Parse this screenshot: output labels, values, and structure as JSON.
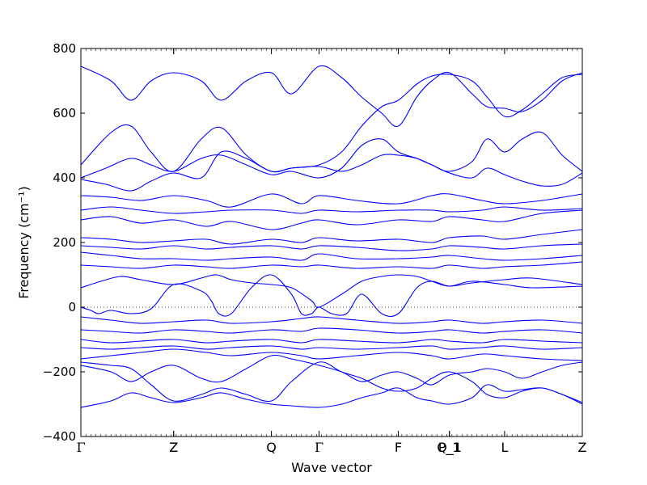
{
  "chart_data": {
    "type": "line",
    "title": "",
    "xlabel": "Wave vector",
    "ylabel": "Frequency (cm⁻¹)",
    "ylim": [
      -400,
      800
    ],
    "yticks": [
      -400,
      -200,
      0,
      200,
      400,
      600,
      800
    ],
    "ytick_labels": [
      "−400",
      "−200",
      "0",
      "200",
      "400",
      "600",
      "800"
    ],
    "xlim": [
      0,
      100
    ],
    "kpoints": [
      {
        "label": "Γ",
        "x": 0
      },
      {
        "label": "Z",
        "x": 18.5
      },
      {
        "label": "Z",
        "x": 18.5
      },
      {
        "label": "Q",
        "x": 38.0
      },
      {
        "label": "Γ",
        "x": 47.5
      },
      {
        "label": "F",
        "x": 63.3
      },
      {
        "label": "P_1",
        "x": 73.5
      },
      {
        "label": "Q_1",
        "x": 73.5
      },
      {
        "label": "L",
        "x": 84.5
      },
      {
        "label": "Z",
        "x": 100
      }
    ],
    "zero_line": true,
    "line_color": "#0000ff",
    "series": [
      {
        "x": [
          0,
          6,
          10,
          14,
          18.5,
          24,
          28,
          33,
          38,
          42,
          47.5,
          52,
          56,
          60,
          63.3,
          67,
          70,
          73.5,
          78,
          81,
          84.5,
          88,
          92,
          96,
          100
        ],
        "y": [
          745,
          700,
          640,
          700,
          725,
          700,
          640,
          700,
          725,
          660,
          745,
          710,
          650,
          600,
          560,
          650,
          700,
          725,
          660,
          620,
          615,
          605,
          640,
          700,
          725
        ]
      },
      {
        "x": [
          0,
          6,
          10,
          14,
          18.5,
          24,
          28,
          33,
          38,
          42,
          47.5,
          52,
          56,
          60,
          63.3,
          67,
          70,
          73.5,
          78,
          81,
          84.5,
          88,
          92,
          96,
          100
        ],
        "y": [
          440,
          540,
          560,
          480,
          420,
          520,
          555,
          470,
          420,
          430,
          440,
          480,
          560,
          620,
          640,
          690,
          715,
          720,
          700,
          650,
          590,
          610,
          660,
          710,
          720
        ]
      },
      {
        "x": [
          0,
          5,
          10,
          14,
          18.5,
          24,
          28,
          33,
          38,
          42,
          47.5,
          52,
          56,
          60,
          63.3,
          67,
          70,
          73.5,
          78,
          81,
          84.5,
          88,
          92,
          96,
          100
        ],
        "y": [
          400,
          430,
          460,
          440,
          420,
          460,
          470,
          440,
          410,
          420,
          400,
          430,
          500,
          520,
          480,
          460,
          440,
          420,
          450,
          520,
          480,
          520,
          540,
          470,
          420
        ]
      },
      {
        "x": [
          0,
          5,
          10,
          14,
          18.5,
          24,
          28,
          33,
          38,
          42,
          47.5,
          52,
          56,
          60,
          63.3,
          67,
          70,
          73.5,
          78,
          81,
          84.5,
          88,
          92,
          96,
          100
        ],
        "y": [
          395,
          380,
          360,
          390,
          415,
          400,
          480,
          460,
          420,
          430,
          435,
          420,
          440,
          470,
          470,
          460,
          440,
          415,
          400,
          430,
          410,
          390,
          375,
          380,
          415
        ]
      },
      {
        "x": [
          0,
          6,
          12,
          18.5,
          25,
          30,
          38,
          44,
          47.5,
          55,
          63.3,
          70,
          73.5,
          80,
          84.5,
          92,
          100
        ],
        "y": [
          345,
          340,
          330,
          345,
          330,
          310,
          350,
          320,
          345,
          330,
          320,
          345,
          350,
          330,
          320,
          330,
          350
        ]
      },
      {
        "x": [
          0,
          6,
          12,
          18.5,
          25,
          30,
          38,
          44,
          47.5,
          55,
          63.3,
          70,
          73.5,
          80,
          84.5,
          92,
          100
        ],
        "y": [
          300,
          310,
          300,
          290,
          295,
          300,
          300,
          290,
          300,
          295,
          300,
          300,
          295,
          300,
          310,
          300,
          305
        ]
      },
      {
        "x": [
          0,
          6,
          12,
          18.5,
          25,
          30,
          38,
          44,
          47.5,
          55,
          63.3,
          70,
          73.5,
          80,
          84.5,
          92,
          100
        ],
        "y": [
          270,
          280,
          260,
          270,
          250,
          265,
          240,
          260,
          270,
          255,
          270,
          265,
          280,
          270,
          265,
          290,
          300
        ]
      },
      {
        "x": [
          0,
          6,
          12,
          18.5,
          25,
          30,
          38,
          44,
          47.5,
          55,
          63.3,
          70,
          73.5,
          80,
          84.5,
          92,
          100
        ],
        "y": [
          215,
          210,
          200,
          205,
          210,
          195,
          210,
          200,
          215,
          205,
          210,
          200,
          215,
          220,
          210,
          225,
          240
        ]
      },
      {
        "x": [
          0,
          6,
          12,
          18.5,
          25,
          30,
          38,
          44,
          47.5,
          55,
          63.3,
          70,
          73.5,
          80,
          84.5,
          92,
          100
        ],
        "y": [
          190,
          185,
          180,
          190,
          180,
          185,
          190,
          180,
          190,
          185,
          175,
          180,
          190,
          185,
          180,
          190,
          195
        ]
      },
      {
        "x": [
          0,
          6,
          12,
          18.5,
          25,
          30,
          38,
          44,
          47.5,
          55,
          63.3,
          70,
          73.5,
          80,
          84.5,
          92,
          100
        ],
        "y": [
          170,
          160,
          150,
          150,
          145,
          150,
          155,
          145,
          165,
          150,
          150,
          155,
          160,
          150,
          145,
          150,
          160
        ]
      },
      {
        "x": [
          0,
          6,
          12,
          18.5,
          25,
          30,
          38,
          44,
          47.5,
          55,
          63.3,
          70,
          73.5,
          80,
          84.5,
          92,
          100
        ],
        "y": [
          130,
          125,
          120,
          130,
          125,
          120,
          130,
          125,
          130,
          120,
          125,
          120,
          130,
          120,
          125,
          130,
          140
        ]
      },
      {
        "x": [
          0,
          4,
          8,
          12,
          18.5,
          24,
          27,
          30,
          34,
          38,
          42,
          46,
          47.5,
          52,
          56,
          60,
          63.3,
          67,
          70,
          73.5,
          78,
          84.5,
          90,
          100
        ],
        "y": [
          60,
          80,
          95,
          85,
          70,
          90,
          100,
          85,
          75,
          70,
          60,
          20,
          0,
          40,
          80,
          95,
          100,
          95,
          80,
          65,
          80,
          70,
          60,
          65
        ]
      },
      {
        "x": [
          0,
          2,
          3.5,
          6,
          10,
          14,
          18.5,
          24,
          26,
          27.5,
          30,
          34,
          38,
          42,
          44,
          46,
          47.5,
          50,
          53,
          56,
          60,
          63.3,
          67,
          70,
          73.5,
          78,
          84.5,
          90,
          100
        ],
        "y": [
          0,
          -10,
          -20,
          -10,
          -20,
          -5,
          70,
          50,
          20,
          -20,
          -20,
          60,
          100,
          40,
          -20,
          -20,
          0,
          -20,
          -20,
          40,
          -20,
          -20,
          60,
          80,
          65,
          75,
          85,
          90,
          70
        ]
      },
      {
        "x": [
          0,
          6,
          12,
          18.5,
          25,
          30,
          38,
          44,
          47.5,
          55,
          63.3,
          70,
          73.5,
          80,
          84.5,
          92,
          100
        ],
        "y": [
          -30,
          -40,
          -50,
          -45,
          -40,
          -50,
          -45,
          -35,
          -30,
          -40,
          -50,
          -45,
          -40,
          -50,
          -45,
          -40,
          -50
        ]
      },
      {
        "x": [
          0,
          6,
          12,
          18.5,
          25,
          30,
          38,
          44,
          47.5,
          55,
          63.3,
          70,
          73.5,
          80,
          84.5,
          92,
          100
        ],
        "y": [
          -70,
          -75,
          -80,
          -70,
          -75,
          -80,
          -70,
          -75,
          -65,
          -70,
          -80,
          -75,
          -70,
          -80,
          -75,
          -70,
          -80
        ]
      },
      {
        "x": [
          0,
          6,
          12,
          18.5,
          25,
          30,
          38,
          44,
          47.5,
          55,
          63.3,
          70,
          73.5,
          80,
          84.5,
          92,
          100
        ],
        "y": [
          -100,
          -110,
          -105,
          -100,
          -110,
          -105,
          -100,
          -110,
          -100,
          -105,
          -110,
          -100,
          -105,
          -110,
          -100,
          -105,
          -110
        ]
      },
      {
        "x": [
          0,
          6,
          12,
          18.5,
          25,
          30,
          38,
          44,
          47.5,
          55,
          63.3,
          70,
          73.5,
          80,
          84.5,
          92,
          100
        ],
        "y": [
          -125,
          -130,
          -125,
          -120,
          -130,
          -125,
          -120,
          -130,
          -125,
          -130,
          -125,
          -120,
          -130,
          -125,
          -120,
          -130,
          -125
        ]
      },
      {
        "x": [
          0,
          6,
          12,
          18.5,
          25,
          30,
          38,
          44,
          47.5,
          55,
          63.3,
          70,
          73.5,
          80,
          84.5,
          92,
          100
        ],
        "y": [
          -160,
          -150,
          -140,
          -130,
          -140,
          -150,
          -140,
          -150,
          -160,
          -150,
          -140,
          -150,
          -160,
          -145,
          -150,
          -160,
          -165
        ]
      },
      {
        "x": [
          0,
          6,
          10,
          14,
          18.5,
          24,
          28,
          33,
          38,
          42,
          47.5,
          52,
          56,
          60,
          63.3,
          67,
          70,
          73.5,
          78,
          81,
          84.5,
          88,
          92,
          96,
          100
        ],
        "y": [
          -180,
          -200,
          -230,
          -200,
          -180,
          -220,
          -230,
          -190,
          -150,
          -160,
          -180,
          -200,
          -230,
          -210,
          -200,
          -220,
          -240,
          -210,
          -200,
          -190,
          -200,
          -220,
          -200,
          -180,
          -170
        ]
      },
      {
        "x": [
          0,
          6,
          10,
          14,
          18.5,
          24,
          28,
          33,
          38,
          42,
          47.5,
          52,
          56,
          60,
          63.3,
          67,
          70,
          73.5,
          78,
          81,
          84.5,
          88,
          92,
          96,
          100
        ],
        "y": [
          -170,
          -180,
          -190,
          -240,
          -290,
          -270,
          -250,
          -270,
          -290,
          -230,
          -170,
          -200,
          -220,
          -250,
          -260,
          -250,
          -220,
          -200,
          -230,
          -270,
          -280,
          -260,
          -250,
          -270,
          -295
        ]
      },
      {
        "x": [
          0,
          6,
          10,
          14,
          18.5,
          24,
          28,
          33,
          38,
          42,
          47.5,
          52,
          56,
          60,
          63.3,
          67,
          70,
          73.5,
          78,
          81,
          84.5,
          88,
          92,
          96,
          100
        ],
        "y": [
          -310,
          -290,
          -265,
          -280,
          -295,
          -280,
          -265,
          -285,
          -300,
          -305,
          -310,
          -300,
          -280,
          -265,
          -250,
          -280,
          -290,
          -300,
          -280,
          -240,
          -260,
          -255,
          -250,
          -270,
          -300
        ]
      }
    ]
  }
}
